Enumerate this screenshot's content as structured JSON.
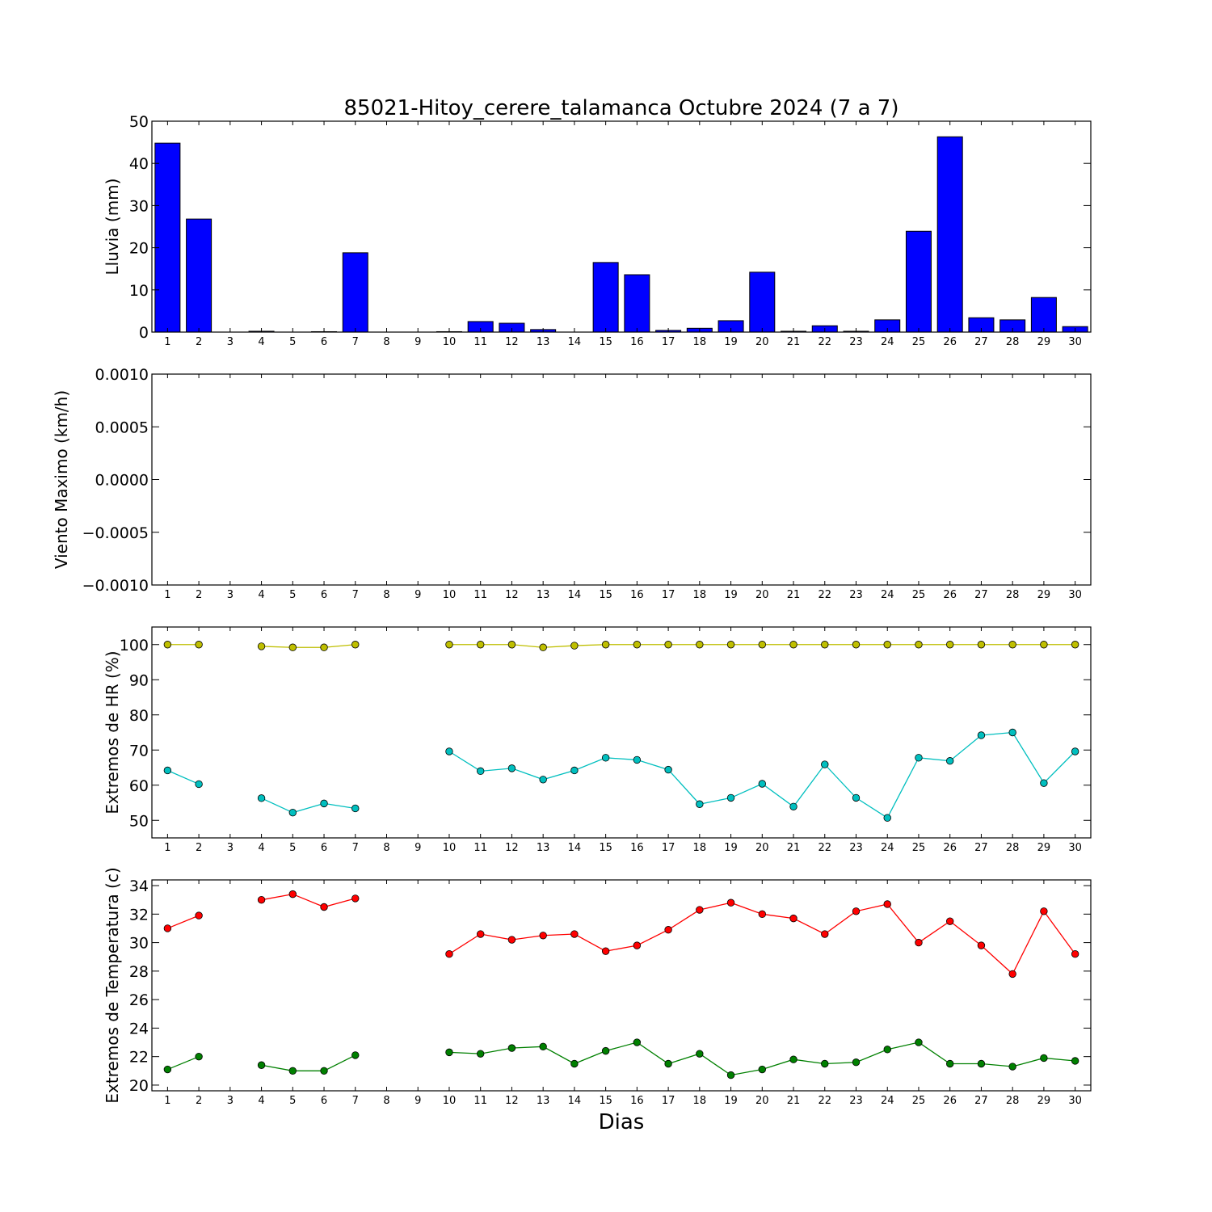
{
  "title": "85021-Hitoy_cerere_talamanca Octubre 2024  (7 a 7)",
  "xlabel": "Dias",
  "chart_data": [
    {
      "type": "bar",
      "ylabel": "Lluvia (mm)",
      "ylim": [
        0,
        50
      ],
      "yticks": [
        0,
        10,
        20,
        30,
        40,
        50
      ],
      "ytick_labels": [
        "0",
        "10",
        "20",
        "30",
        "40",
        "50"
      ],
      "categories": [
        "1",
        "2",
        "3",
        "4",
        "5",
        "6",
        "7",
        "8",
        "9",
        "10",
        "11",
        "12",
        "13",
        "14",
        "15",
        "16",
        "17",
        "18",
        "19",
        "20",
        "21",
        "22",
        "23",
        "24",
        "25",
        "26",
        "27",
        "28",
        "29",
        "30"
      ],
      "series": [
        {
          "color": "#0000ff",
          "values": [
            44.8,
            26.8,
            0,
            0.2,
            0,
            0.1,
            18.8,
            0,
            0,
            0.1,
            2.5,
            2.1,
            0.6,
            0,
            16.5,
            13.6,
            0.4,
            0.9,
            2.7,
            14.2,
            0.2,
            1.5,
            0.2,
            2.9,
            23.9,
            46.3,
            3.4,
            2.9,
            8.2,
            1.3
          ]
        }
      ]
    },
    {
      "type": "line",
      "ylabel": "Viento Maximo (km/h)",
      "ylim": [
        -0.001,
        0.001
      ],
      "yticks": [
        -0.001,
        -0.0005,
        0,
        0.0005,
        0.001
      ],
      "ytick_labels": [
        "−0.0010",
        "−0.0005",
        "0.0000",
        "0.0005",
        "0.0010"
      ],
      "categories": [
        "1",
        "2",
        "3",
        "4",
        "5",
        "6",
        "7",
        "8",
        "9",
        "10",
        "11",
        "12",
        "13",
        "14",
        "15",
        "16",
        "17",
        "18",
        "19",
        "20",
        "21",
        "22",
        "23",
        "24",
        "25",
        "26",
        "27",
        "28",
        "29",
        "30"
      ],
      "series": []
    },
    {
      "type": "line",
      "ylabel": "Extremos de HR (%)",
      "ylim": [
        45,
        105
      ],
      "yticks": [
        50,
        60,
        70,
        80,
        90,
        100
      ],
      "ytick_labels": [
        "50",
        "60",
        "70",
        "80",
        "90",
        "100"
      ],
      "categories": [
        "1",
        "2",
        "3",
        "4",
        "5",
        "6",
        "7",
        "8",
        "9",
        "10",
        "11",
        "12",
        "13",
        "14",
        "15",
        "16",
        "17",
        "18",
        "19",
        "20",
        "21",
        "22",
        "23",
        "24",
        "25",
        "26",
        "27",
        "28",
        "29",
        "30"
      ],
      "series": [
        {
          "color": "#bfbf00",
          "values": [
            100,
            100,
            null,
            99.5,
            99.2,
            99.2,
            100,
            null,
            null,
            100,
            100,
            100,
            99.2,
            99.7,
            100,
            100,
            100,
            100,
            100,
            100,
            100,
            100,
            100,
            100,
            100,
            100,
            100,
            100,
            100,
            100
          ]
        },
        {
          "color": "#00bfbf",
          "values": [
            64.2,
            60.3,
            null,
            56.3,
            52.2,
            54.8,
            53.4,
            null,
            null,
            69.6,
            64,
            64.8,
            61.6,
            64.2,
            67.8,
            67.2,
            64.4,
            54.6,
            56.4,
            60.4,
            53.9,
            65.9,
            56.4,
            50.7,
            67.8,
            66.9,
            74.2,
            75,
            60.6,
            69.6
          ]
        }
      ]
    },
    {
      "type": "line",
      "ylabel": "Extremos de Temperatura (c)",
      "ylim": [
        19.6,
        34.4
      ],
      "yticks": [
        20,
        22,
        24,
        26,
        28,
        30,
        32,
        34
      ],
      "ytick_labels": [
        "20",
        "22",
        "24",
        "26",
        "28",
        "30",
        "32",
        "34"
      ],
      "categories": [
        "1",
        "2",
        "3",
        "4",
        "5",
        "6",
        "7",
        "8",
        "9",
        "10",
        "11",
        "12",
        "13",
        "14",
        "15",
        "16",
        "17",
        "18",
        "19",
        "20",
        "21",
        "22",
        "23",
        "24",
        "25",
        "26",
        "27",
        "28",
        "29",
        "30"
      ],
      "series": [
        {
          "color": "#ff0000",
          "values": [
            31,
            31.9,
            null,
            33,
            33.4,
            32.5,
            33.1,
            null,
            null,
            29.2,
            30.6,
            30.2,
            30.5,
            30.6,
            29.4,
            29.8,
            30.9,
            32.3,
            32.8,
            32,
            31.7,
            30.6,
            32.2,
            32.7,
            30,
            31.5,
            29.8,
            27.8,
            32.2,
            29.2
          ]
        },
        {
          "color": "#008000",
          "values": [
            21.1,
            22,
            null,
            21.4,
            21,
            21,
            22.1,
            null,
            null,
            22.3,
            22.2,
            22.6,
            22.7,
            21.5,
            22.4,
            23,
            21.5,
            22.2,
            20.7,
            21.1,
            21.8,
            21.5,
            21.6,
            22.5,
            23,
            21.5,
            21.5,
            21.3,
            21.9,
            21.7
          ]
        }
      ]
    }
  ]
}
